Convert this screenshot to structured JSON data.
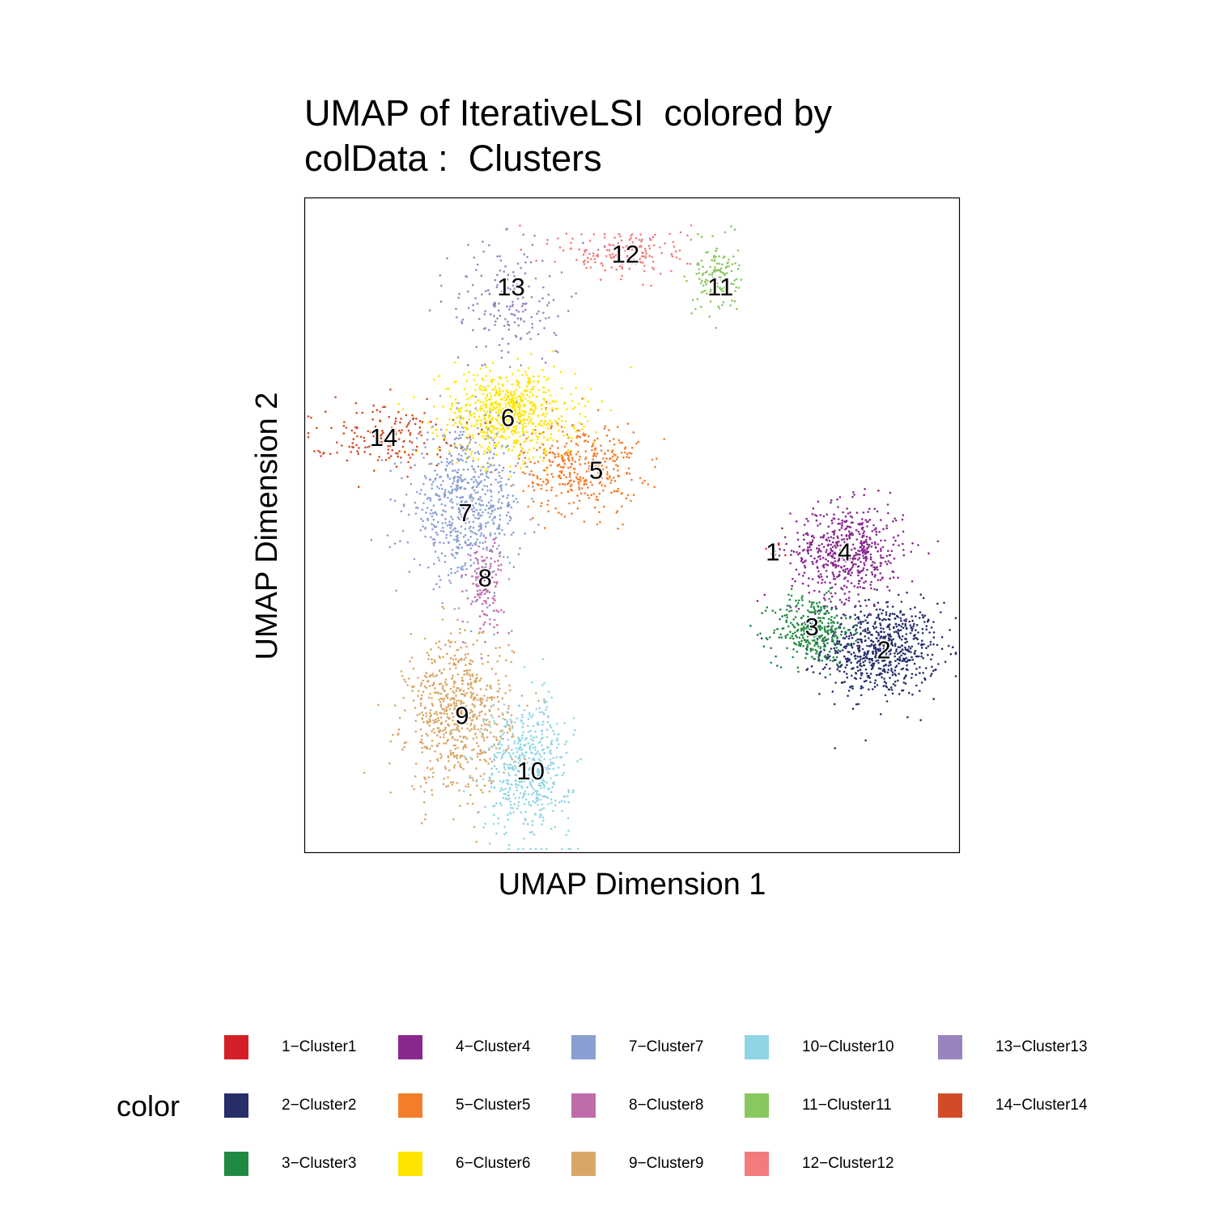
{
  "chart_data": {
    "type": "scatter",
    "title": "UMAP of IterativeLSI  colored by\ncolData :  Clusters",
    "xlabel": "UMAP Dimension 1",
    "ylabel": "UMAP Dimension 2",
    "xlim": [
      0,
      100
    ],
    "ylim": [
      0,
      100
    ],
    "grid": false,
    "legend_title": "color",
    "legend_position": "bottom",
    "clusters": [
      {
        "name": "1−Cluster1",
        "label": "1",
        "color": "#D51F26",
        "center": [
          71.5,
          46
        ],
        "spread": [
          0.7,
          0.8
        ],
        "n": 14
      },
      {
        "name": "2−Cluster2",
        "label": "2",
        "color": "#272E6A",
        "center": [
          88,
          31
        ],
        "spread": [
          4.5,
          3.6
        ],
        "n": 700
      },
      {
        "name": "3−Cluster3",
        "label": "3",
        "color": "#208A42",
        "center": [
          77.5,
          34
        ],
        "spread": [
          3.0,
          2.6
        ],
        "n": 330
      },
      {
        "name": "4−Cluster4",
        "label": "4",
        "color": "#89288F",
        "center": [
          83,
          46
        ],
        "spread": [
          4.3,
          3.6
        ],
        "n": 560
      },
      {
        "name": "5−Cluster5",
        "label": "5",
        "color": "#F47D2B",
        "center": [
          42,
          59
        ],
        "spread": [
          4.5,
          3.6
        ],
        "n": 380
      },
      {
        "name": "6−Cluster6",
        "label": "6",
        "color": "#FEE500",
        "center": [
          31,
          67
        ],
        "spread": [
          5.2,
          3.3
        ],
        "n": 700
      },
      {
        "name": "7−Cluster7",
        "label": "7",
        "color": "#8A9FD1",
        "center": [
          24.5,
          53
        ],
        "spread": [
          4.3,
          5.6
        ],
        "n": 650
      },
      {
        "name": "8−Cluster8",
        "label": "8",
        "color": "#C06CAB",
        "center": [
          27.5,
          41
        ],
        "spread": [
          1.4,
          3.6
        ],
        "n": 130
      },
      {
        "name": "9−Cluster9",
        "label": "9",
        "color": "#D8A767",
        "center": [
          23.5,
          21
        ],
        "spread": [
          4.0,
          6.0
        ],
        "n": 700
      },
      {
        "name": "10−Cluster10",
        "label": "10",
        "color": "#90D5E4",
        "center": [
          34,
          13
        ],
        "spread": [
          3.3,
          5.0
        ],
        "n": 520
      },
      {
        "name": "11−Cluster11",
        "label": "11",
        "color": "#89C75F",
        "center": [
          63,
          88
        ],
        "spread": [
          1.6,
          2.8
        ],
        "n": 150
      },
      {
        "name": "12−Cluster12",
        "label": "12",
        "color": "#F37B7D",
        "center": [
          49,
          91.5
        ],
        "spread": [
          5.0,
          2.0
        ],
        "n": 160
      },
      {
        "name": "13−Cluster13",
        "label": "13",
        "color": "#9983BD",
        "center": [
          31,
          84
        ],
        "spread": [
          4.2,
          5.0
        ],
        "n": 180
      },
      {
        "name": "14−Cluster14",
        "label": "14",
        "color": "#D24B27",
        "center": [
          12,
          64
        ],
        "spread": [
          5.5,
          2.3
        ],
        "n": 170
      }
    ],
    "cluster_labels_at": {
      "1": [
        71.5,
        46
      ],
      "2": [
        88.5,
        31
      ],
      "3": [
        77.5,
        34.5
      ],
      "4": [
        82.5,
        46
      ],
      "5": [
        44.5,
        58.5
      ],
      "6": [
        31,
        66.5
      ],
      "7": [
        24.5,
        52
      ],
      "8": [
        27.5,
        42
      ],
      "9": [
        24,
        21
      ],
      "10": [
        34.5,
        12.5
      ],
      "11": [
        63.5,
        86.5
      ],
      "12": [
        49,
        91.5
      ],
      "13": [
        31.5,
        86.5
      ],
      "14": [
        12,
        63.5
      ]
    }
  },
  "legend": {
    "title": "color",
    "items": [
      {
        "label": "1−Cluster1",
        "color": "#D51F26"
      },
      {
        "label": "2−Cluster2",
        "color": "#272E6A"
      },
      {
        "label": "3−Cluster3",
        "color": "#208A42"
      },
      {
        "label": "4−Cluster4",
        "color": "#89288F"
      },
      {
        "label": "5−Cluster5",
        "color": "#F47D2B"
      },
      {
        "label": "6−Cluster6",
        "color": "#FEE500"
      },
      {
        "label": "7−Cluster7",
        "color": "#8A9FD1"
      },
      {
        "label": "8−Cluster8",
        "color": "#C06CAB"
      },
      {
        "label": "9−Cluster9",
        "color": "#D8A767"
      },
      {
        "label": "10−Cluster10",
        "color": "#90D5E4"
      },
      {
        "label": "11−Cluster11",
        "color": "#89C75F"
      },
      {
        "label": "12−Cluster12",
        "color": "#F37B7D"
      },
      {
        "label": "13−Cluster13",
        "color": "#9983BD"
      },
      {
        "label": "14−Cluster14",
        "color": "#D24B27"
      }
    ]
  }
}
